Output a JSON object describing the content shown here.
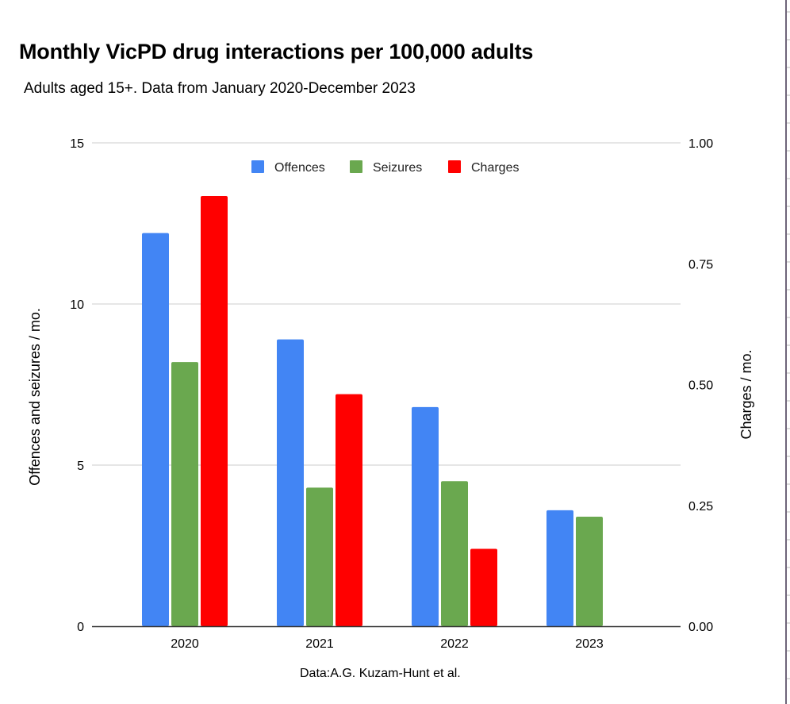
{
  "chart_data": {
    "type": "bar",
    "title": "Monthly VicPD drug interactions per 100,000 adults",
    "subtitle": "Adults aged 15+. Data from January 2020-December 2023",
    "footer": "Data:A.G. Kuzam-Hunt et al.",
    "categories": [
      "2020",
      "2021",
      "2022",
      "2023"
    ],
    "series": [
      {
        "name": "Offences",
        "axis": "left",
        "color": "#4285f4",
        "values": [
          12.2,
          8.9,
          6.8,
          3.6
        ]
      },
      {
        "name": "Seizures",
        "axis": "left",
        "color": "#6aa84f",
        "values": [
          8.2,
          4.3,
          4.5,
          3.4
        ]
      },
      {
        "name": "Charges",
        "axis": "right",
        "color": "#ff0000",
        "values": [
          0.89,
          0.48,
          0.16,
          null
        ]
      }
    ],
    "left_axis": {
      "label": "Offences and seizures / mo.",
      "range": [
        0,
        15
      ],
      "ticks": [
        0,
        5,
        10,
        15
      ],
      "tick_labels": [
        "0",
        "5",
        "10",
        "15"
      ]
    },
    "right_axis": {
      "label": "Charges / mo.",
      "range": [
        0,
        1
      ],
      "ticks": [
        0,
        0.25,
        0.5,
        0.75,
        1
      ],
      "tick_labels": [
        "0.00",
        "0.25",
        "0.50",
        "0.75",
        "1.00"
      ]
    },
    "xlabel": "",
    "grid": true,
    "legend_position": "top-center"
  }
}
